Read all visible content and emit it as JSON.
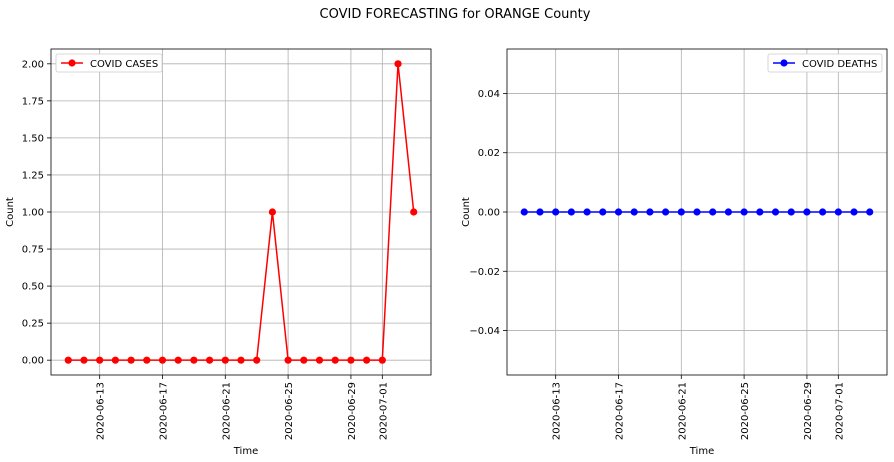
{
  "figure_title": "COVID FORECASTING for ORANGE County",
  "chart_data": [
    {
      "type": "line",
      "xlabel": "Time",
      "ylabel": "Count",
      "x": [
        "2020-06-11",
        "2020-06-12",
        "2020-06-13",
        "2020-06-14",
        "2020-06-15",
        "2020-06-16",
        "2020-06-17",
        "2020-06-18",
        "2020-06-19",
        "2020-06-20",
        "2020-06-21",
        "2020-06-22",
        "2020-06-23",
        "2020-06-24",
        "2020-06-25",
        "2020-06-26",
        "2020-06-27",
        "2020-06-28",
        "2020-06-29",
        "2020-06-30",
        "2020-07-01",
        "2020-07-02",
        "2020-07-03"
      ],
      "series": [
        {
          "name": "COVID CASES",
          "color": "#ff0000",
          "values": [
            0,
            0,
            0,
            0,
            0,
            0,
            0,
            0,
            0,
            0,
            0,
            0,
            0,
            1,
            0,
            0,
            0,
            0,
            0,
            0,
            0,
            2,
            1
          ]
        }
      ],
      "xticks": [
        "2020-06-13",
        "2020-06-17",
        "2020-06-21",
        "2020-06-25",
        "2020-06-29",
        "2020-07-01"
      ],
      "yticks": [
        0.0,
        0.25,
        0.5,
        0.75,
        1.0,
        1.25,
        1.5,
        1.75,
        2.0
      ],
      "ytick_labels": [
        "0.00",
        "0.25",
        "0.50",
        "0.75",
        "1.00",
        "1.25",
        "1.50",
        "1.75",
        "2.00"
      ],
      "ylim": [
        -0.1,
        2.1
      ],
      "grid": true,
      "legend": "upper left"
    },
    {
      "type": "line",
      "xlabel": "Time",
      "ylabel": "Count",
      "x": [
        "2020-06-11",
        "2020-06-12",
        "2020-06-13",
        "2020-06-14",
        "2020-06-15",
        "2020-06-16",
        "2020-06-17",
        "2020-06-18",
        "2020-06-19",
        "2020-06-20",
        "2020-06-21",
        "2020-06-22",
        "2020-06-23",
        "2020-06-24",
        "2020-06-25",
        "2020-06-26",
        "2020-06-27",
        "2020-06-28",
        "2020-06-29",
        "2020-06-30",
        "2020-07-01",
        "2020-07-02",
        "2020-07-03"
      ],
      "series": [
        {
          "name": "COVID DEATHS",
          "color": "#0000ff",
          "values": [
            0,
            0,
            0,
            0,
            0,
            0,
            0,
            0,
            0,
            0,
            0,
            0,
            0,
            0,
            0,
            0,
            0,
            0,
            0,
            0,
            0,
            0,
            0
          ]
        }
      ],
      "xticks": [
        "2020-06-13",
        "2020-06-17",
        "2020-06-21",
        "2020-06-25",
        "2020-06-29",
        "2020-07-01"
      ],
      "yticks": [
        -0.04,
        -0.02,
        0.0,
        0.02,
        0.04
      ],
      "ytick_labels": [
        "−0.04",
        "−0.02",
        "0.00",
        "0.02",
        "0.04"
      ],
      "ylim": [
        -0.055,
        0.055
      ],
      "grid": true,
      "legend": "upper right"
    }
  ]
}
